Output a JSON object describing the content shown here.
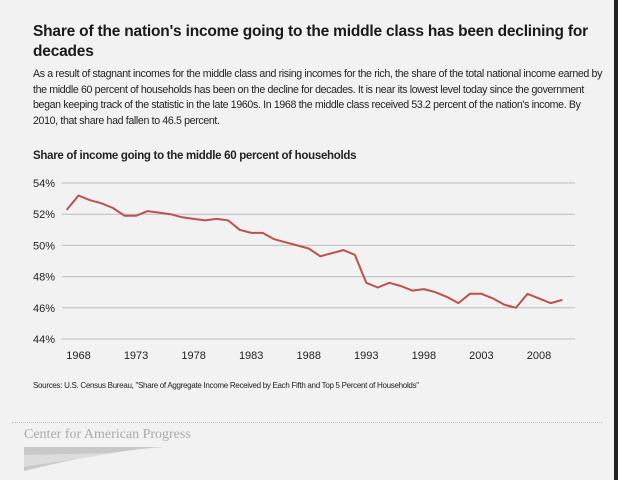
{
  "header": {
    "title": "Share of the nation's income going to the middle class has been declining for decades",
    "description": "As a result of stagnant incomes for the middle class and rising incomes for the rich, the share of the total national income earned by the middle 60 percent of households has been on the decline for decades. It is near its lowest level today since the government began keeping track of the statistic in the late 1960s. In 1968 the middle class received 53.2 percent of the nation's income. By 2010, that share had fallen to 46.5 percent."
  },
  "chart_data": {
    "type": "line",
    "title": "Share of income going to the middle 60 percent of households",
    "xlabel": "",
    "ylabel": "",
    "ylim": [
      44,
      54
    ],
    "yticks": [
      "44%",
      "46%",
      "48%",
      "50%",
      "52%",
      "54%"
    ],
    "xticks": [
      "1968",
      "1973",
      "1978",
      "1983",
      "1988",
      "1993",
      "1998",
      "2003",
      "2008"
    ],
    "grid": true,
    "line_color": "#c0504d",
    "x": [
      1967,
      1968,
      1969,
      1970,
      1971,
      1972,
      1973,
      1974,
      1975,
      1976,
      1977,
      1978,
      1979,
      1980,
      1981,
      1982,
      1983,
      1984,
      1985,
      1986,
      1987,
      1988,
      1989,
      1990,
      1991,
      1992,
      1993,
      1994,
      1995,
      1996,
      1997,
      1998,
      1999,
      2000,
      2001,
      2002,
      2003,
      2004,
      2005,
      2006,
      2007,
      2008,
      2009,
      2010
    ],
    "values": [
      52.3,
      53.2,
      52.9,
      52.7,
      52.4,
      51.9,
      51.9,
      52.2,
      52.1,
      52.0,
      51.8,
      51.7,
      51.6,
      51.7,
      51.6,
      51.0,
      50.8,
      50.8,
      50.4,
      50.2,
      50.0,
      49.8,
      49.3,
      49.5,
      49.7,
      49.4,
      47.6,
      47.3,
      47.6,
      47.4,
      47.1,
      47.2,
      47.0,
      46.7,
      46.3,
      46.9,
      46.9,
      46.6,
      46.2,
      46.0,
      46.9,
      46.6,
      46.3,
      46.5
    ]
  },
  "footer": {
    "source": "Sources: U.S. Census Bureau, \"Share of Aggregate Income Received by Each Fifth and Top 5 Percent of Households\"",
    "logo_text": "Center for American Progress"
  }
}
